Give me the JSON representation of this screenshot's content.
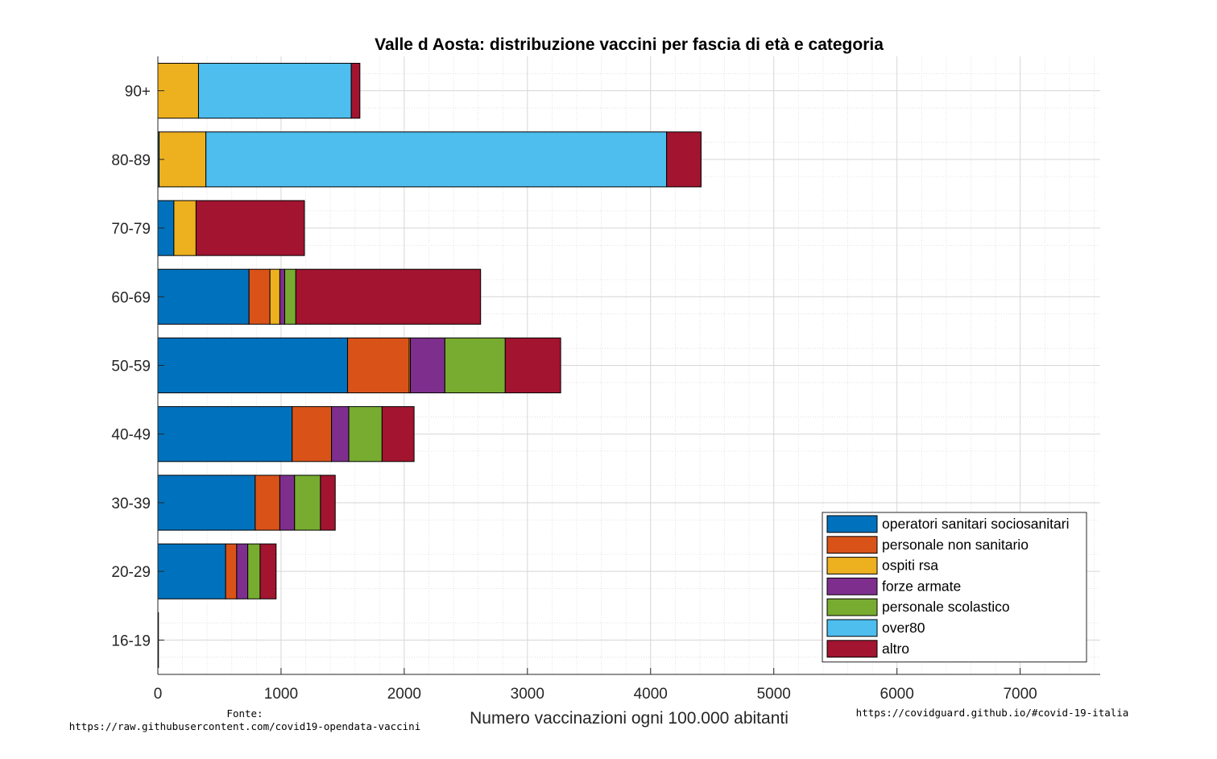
{
  "chart_data": {
    "type": "bar",
    "orientation": "horizontal",
    "stacked": true,
    "title": "Valle d Aosta: distribuzione vaccini per fascia di età e categoria",
    "xlabel": "Numero vaccinazioni ogni 100.000 abitanti",
    "categories": [
      "90+",
      "80-89",
      "70-79",
      "60-69",
      "50-59",
      "40-49",
      "30-39",
      "20-29",
      "16-19"
    ],
    "xlim": [
      0,
      7650
    ],
    "xticks": [
      0,
      1000,
      2000,
      3000,
      4000,
      5000,
      6000,
      7000
    ],
    "grid": true,
    "minor_grid": true,
    "legend_position": "bottom-right",
    "series": [
      {
        "name": "operatori sanitari sociosanitari",
        "color": "#0072BD",
        "values": [
          0,
          10,
          130,
          740,
          1540,
          1090,
          790,
          550,
          5
        ]
      },
      {
        "name": "personale non sanitario",
        "color": "#D95319",
        "values": [
          0,
          0,
          0,
          170,
          500,
          320,
          200,
          90,
          0
        ]
      },
      {
        "name": "ospiti rsa",
        "color": "#EDB120",
        "values": [
          330,
          380,
          180,
          80,
          10,
          0,
          0,
          0,
          0
        ]
      },
      {
        "name": "forze armate",
        "color": "#7E2F8E",
        "values": [
          0,
          0,
          0,
          40,
          280,
          140,
          120,
          90,
          0
        ]
      },
      {
        "name": "personale scolastico",
        "color": "#77AC30",
        "values": [
          0,
          0,
          0,
          90,
          490,
          270,
          210,
          100,
          0
        ]
      },
      {
        "name": "over80",
        "color": "#4DBEEE",
        "values": [
          1240,
          3740,
          0,
          0,
          0,
          0,
          0,
          0,
          0
        ]
      },
      {
        "name": "altro",
        "color": "#A2142F",
        "values": [
          70,
          280,
          880,
          1500,
          450,
          260,
          120,
          130,
          0
        ]
      }
    ]
  },
  "notes": {
    "fonte_label": "Fonte:",
    "fonte_url": "https://raw.githubusercontent.com/covid19-opendata-vaccini",
    "site": "https://covidguard.github.io/#covid-19-italia"
  }
}
